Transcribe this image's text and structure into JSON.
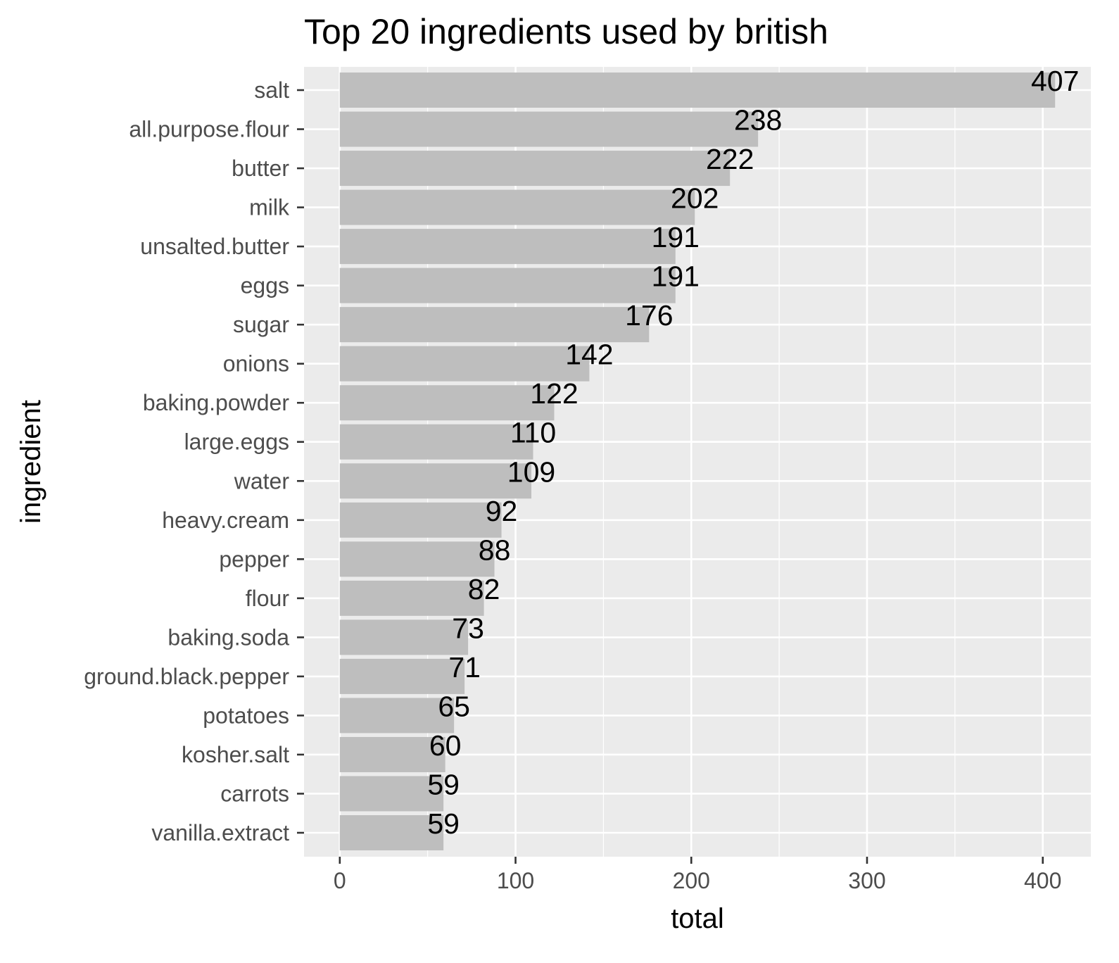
{
  "chart_data": {
    "type": "bar",
    "orientation": "horizontal",
    "title": "Top 20 ingredients used by british",
    "xlabel": "total",
    "ylabel": "ingredient",
    "xlim": [
      -20.35,
      427.35
    ],
    "xticks": [
      0,
      100,
      200,
      300,
      400
    ],
    "grid": true,
    "legend": "none",
    "colors": {
      "bar": "#bebebe",
      "panel": "#ebebeb",
      "grid": "#ffffff",
      "text": "#000000",
      "tick_text": "#4d4d4d"
    },
    "categories": [
      "salt",
      "all.purpose.flour",
      "butter",
      "milk",
      "unsalted.butter",
      "eggs",
      "sugar",
      "onions",
      "baking.powder",
      "large.eggs",
      "water",
      "heavy.cream",
      "pepper",
      "flour",
      "baking.soda",
      "ground.black.pepper",
      "potatoes",
      "kosher.salt",
      "carrots",
      "vanilla.extract"
    ],
    "values": [
      407,
      238,
      222,
      202,
      191,
      191,
      176,
      142,
      122,
      110,
      109,
      92,
      88,
      82,
      73,
      71,
      65,
      60,
      59,
      59
    ]
  }
}
